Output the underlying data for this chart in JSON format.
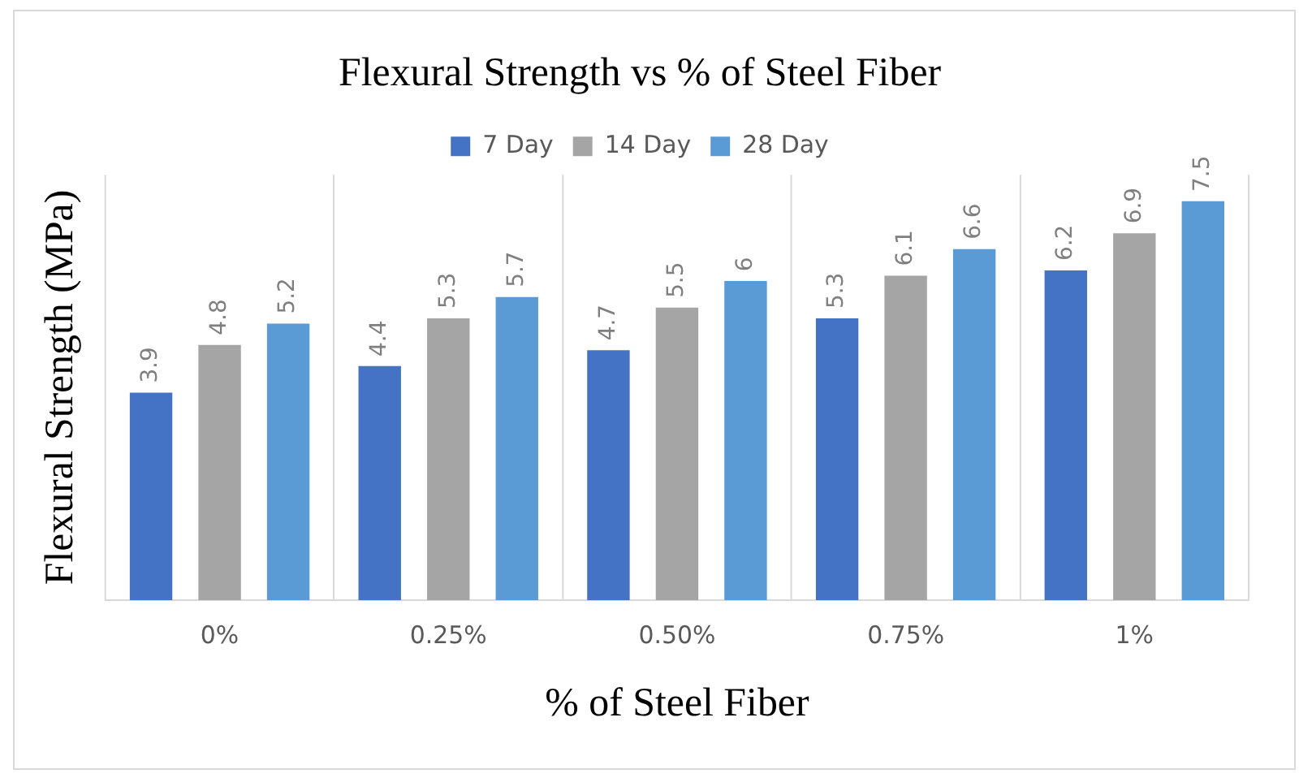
{
  "chart_data": {
    "type": "bar",
    "title": "Flexural Strength vs % of Steel Fiber",
    "xlabel": "% of Steel Fiber",
    "ylabel": "Flexural Strength (MPa)",
    "categories": [
      "0%",
      "0.25%",
      "0.50%",
      "0.75%",
      "1%"
    ],
    "series": [
      {
        "name": "7 Day",
        "color": "#4472c4",
        "values": [
          3.9,
          4.4,
          4.7,
          5.3,
          6.2
        ]
      },
      {
        "name": "14 Day",
        "color": "#a5a5a5",
        "values": [
          4.8,
          5.3,
          5.5,
          6.1,
          6.9
        ]
      },
      {
        "name": "28 Day",
        "color": "#5b9bd5",
        "values": [
          5.2,
          5.7,
          6,
          6.6,
          7.5
        ]
      }
    ],
    "ylim": [
      0,
      8
    ],
    "tick_labels": "x",
    "grid": "x",
    "legend": "top",
    "data_labels": true
  }
}
